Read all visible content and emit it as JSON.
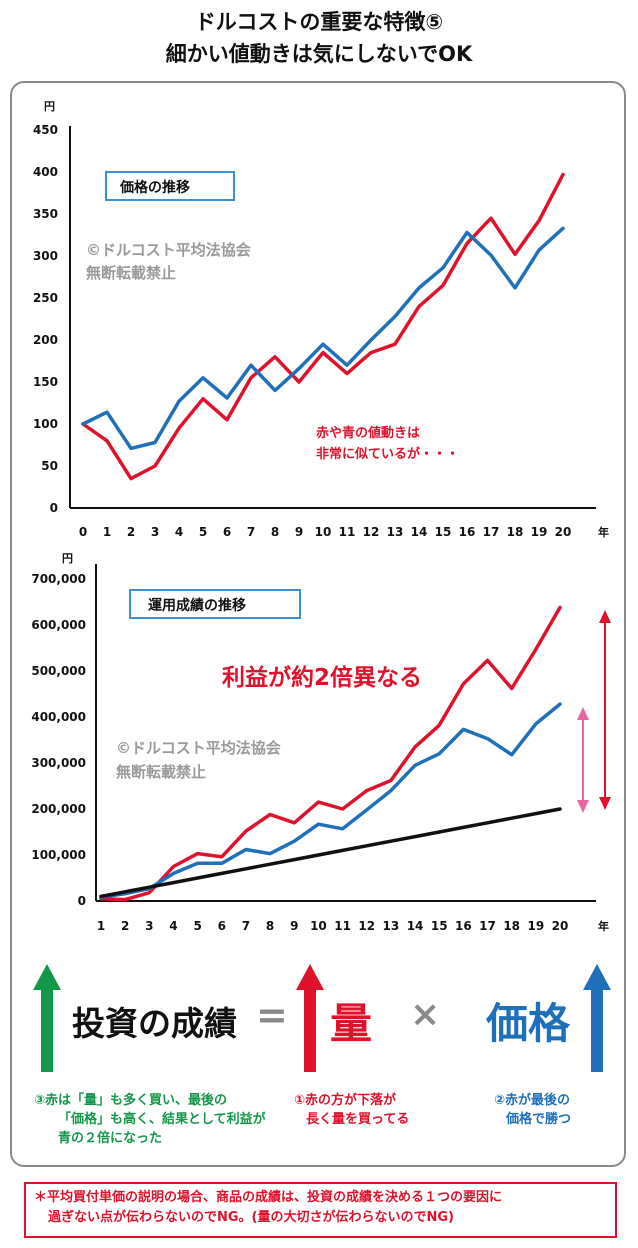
{
  "title": {
    "line1": "ドルコストの重要な特徴⑤",
    "line2": "細かい値動きは気にしないでOK"
  },
  "colors": {
    "red": "#e0112b",
    "blue": "#1f6fba",
    "black": "#111111",
    "green": "#15974a",
    "pink": "#e46aa0"
  },
  "chart_data": [
    {
      "type": "line",
      "unit_label": "円",
      "x_unit_label": "年",
      "box_label": "価格の推移",
      "watermark": [
        "©ドルコスト平均法協会",
        "無断転載禁止"
      ],
      "annotation": [
        "赤や青の値動きは",
        "非常に似ているが・・・"
      ],
      "x": [
        0,
        1,
        2,
        3,
        4,
        5,
        6,
        7,
        8,
        9,
        10,
        11,
        12,
        13,
        14,
        15,
        16,
        17,
        18,
        19,
        20
      ],
      "ylim": [
        0,
        450
      ],
      "yticks": [
        "0",
        "50",
        "100",
        "150",
        "200",
        "250",
        "300",
        "350",
        "400",
        "450"
      ],
      "series": [
        {
          "color": "red",
          "values": [
            100,
            80,
            35,
            50,
            95,
            130,
            105,
            155,
            180,
            150,
            185,
            160,
            185,
            195,
            240,
            265,
            315,
            345,
            302,
            342,
            397
          ]
        },
        {
          "color": "blue",
          "values": [
            100,
            114,
            71,
            78,
            127,
            155,
            131,
            170,
            140,
            166,
            195,
            170,
            200,
            228,
            262,
            286,
            328,
            301,
            262,
            307,
            333
          ]
        }
      ]
    },
    {
      "type": "line",
      "unit_label": "円",
      "x_unit_label": "年",
      "box_label": "運用成績の推移",
      "watermark": [
        "©ドルコスト平均法協会",
        "無断転載禁止"
      ],
      "annotation": [
        "利益が約2倍異なる"
      ],
      "x": [
        1,
        2,
        3,
        4,
        5,
        6,
        7,
        8,
        9,
        10,
        11,
        12,
        13,
        14,
        15,
        16,
        17,
        18,
        19,
        20
      ],
      "ylim": [
        0,
        700000
      ],
      "yticks": [
        "0",
        "100,000",
        "200,000",
        "300,000",
        "400,000",
        "500,000",
        "600,000",
        "700,000"
      ],
      "series": [
        {
          "color": "red",
          "values": [
            5000,
            3000,
            18000,
            75000,
            103000,
            96000,
            152000,
            188000,
            170000,
            215000,
            200000,
            240000,
            262000,
            335000,
            382000,
            472000,
            523000,
            462000,
            547000,
            638000
          ]
        },
        {
          "color": "blue",
          "values": [
            8000,
            16000,
            27000,
            60000,
            82000,
            82000,
            112000,
            103000,
            130000,
            167000,
            157000,
            198000,
            240000,
            295000,
            320000,
            373000,
            353000,
            318000,
            385000,
            428000
          ]
        },
        {
          "color": "black",
          "values": [
            10000,
            20000,
            30000,
            40000,
            50000,
            60000,
            70000,
            80000,
            90000,
            100000,
            110000,
            120000,
            130000,
            140000,
            150000,
            160000,
            170000,
            180000,
            190000,
            200000
          ]
        }
      ]
    }
  ],
  "formula": {
    "left": "投資の成績",
    "equals": "=",
    "mid": "量",
    "times": "×",
    "right": "価格"
  },
  "captions": {
    "green": [
      "③赤は「量」も多く買い、最後の",
      "「価格」も高く、結果として利益が",
      "青の２倍になった"
    ],
    "red": [
      "①赤の方が下落が",
      "長く量を買ってる"
    ],
    "blue": [
      "②赤が最後の",
      "価格で勝つ"
    ]
  },
  "footnote": [
    "＊平均買付単価の説明の場合、商品の成績は、投資の成績を決める１つの要因に",
    "過ぎない点が伝わらないのでNG。(量の大切さが伝わらないのでNG)"
  ]
}
